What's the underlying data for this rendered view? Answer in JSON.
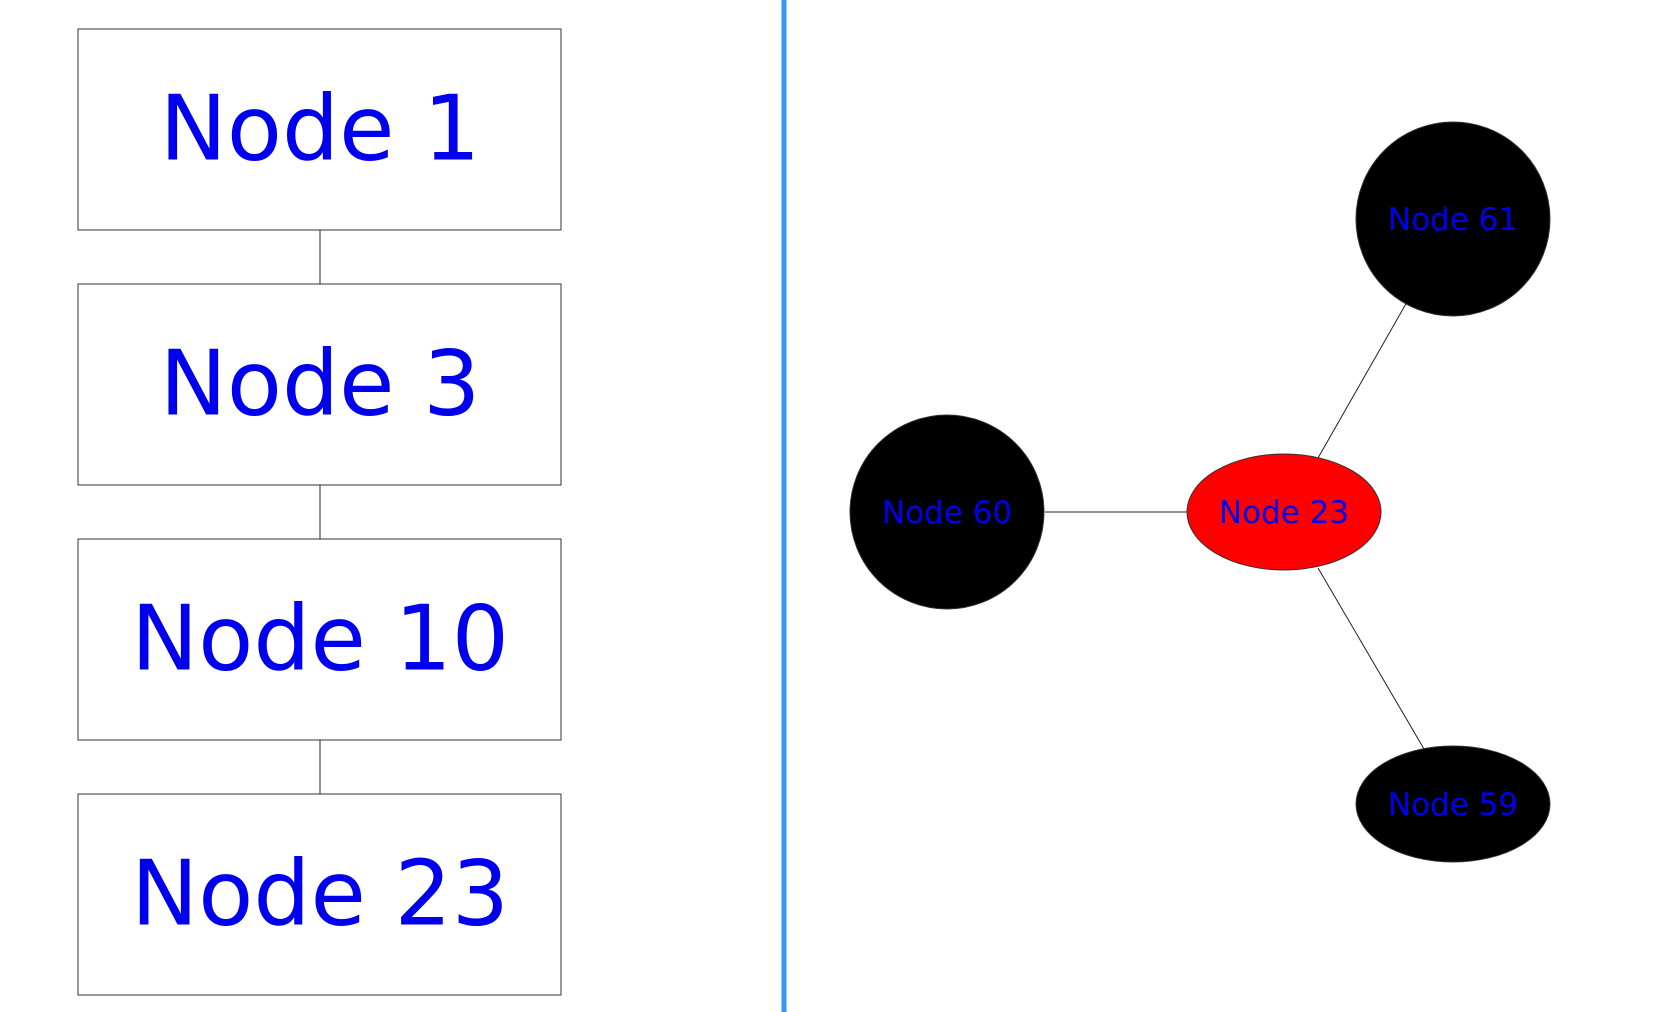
{
  "colors": {
    "label_text": "#0000ee",
    "divider": "#3399ee",
    "node_default_fill": "#000000",
    "node_selected_fill": "#ff0000"
  },
  "left_panel": {
    "path_nodes": [
      {
        "label": "Node 1"
      },
      {
        "label": "Node 3"
      },
      {
        "label": "Node 10"
      },
      {
        "label": "Node 23"
      }
    ]
  },
  "right_panel": {
    "nodes": [
      {
        "id": "n60",
        "label": "Node 60",
        "shape": "circle",
        "selected": false
      },
      {
        "id": "n23",
        "label": "Node 23",
        "shape": "ellipse",
        "selected": true
      },
      {
        "id": "n61",
        "label": "Node 61",
        "shape": "circle",
        "selected": false
      },
      {
        "id": "n59",
        "label": "Node 59",
        "shape": "ellipse",
        "selected": false
      }
    ],
    "edges": [
      {
        "from": "n60",
        "to": "n23"
      },
      {
        "from": "n23",
        "to": "n61"
      },
      {
        "from": "n23",
        "to": "n59"
      }
    ]
  }
}
